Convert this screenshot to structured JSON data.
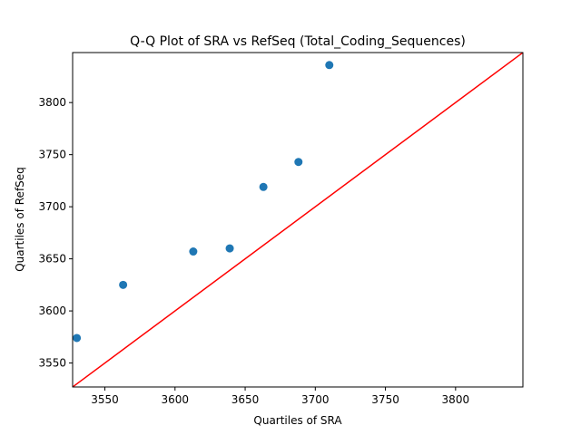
{
  "chart_data": {
    "type": "scatter",
    "title": "Q-Q Plot of SRA vs RefSeq (Total_Coding_Sequences)",
    "xlabel": "Quartiles of SRA",
    "ylabel": "Quartiles of RefSeq",
    "xlim": [
      3527,
      3848
    ],
    "ylim": [
      3527,
      3848
    ],
    "xticks": [
      3550,
      3600,
      3650,
      3700,
      3750,
      3800
    ],
    "yticks": [
      3550,
      3600,
      3650,
      3700,
      3750,
      3800
    ],
    "grid": false,
    "points": [
      {
        "x": 3530,
        "y": 3574
      },
      {
        "x": 3563,
        "y": 3625
      },
      {
        "x": 3613,
        "y": 3657
      },
      {
        "x": 3639,
        "y": 3660
      },
      {
        "x": 3663,
        "y": 3719
      },
      {
        "x": 3688,
        "y": 3743
      },
      {
        "x": 3710,
        "y": 3836
      }
    ],
    "reference_line": {
      "from": [
        3527,
        3527
      ],
      "to": [
        3848,
        3848
      ]
    },
    "colors": {
      "points": "#1f77b4",
      "reference_line": "#ff0000"
    }
  }
}
